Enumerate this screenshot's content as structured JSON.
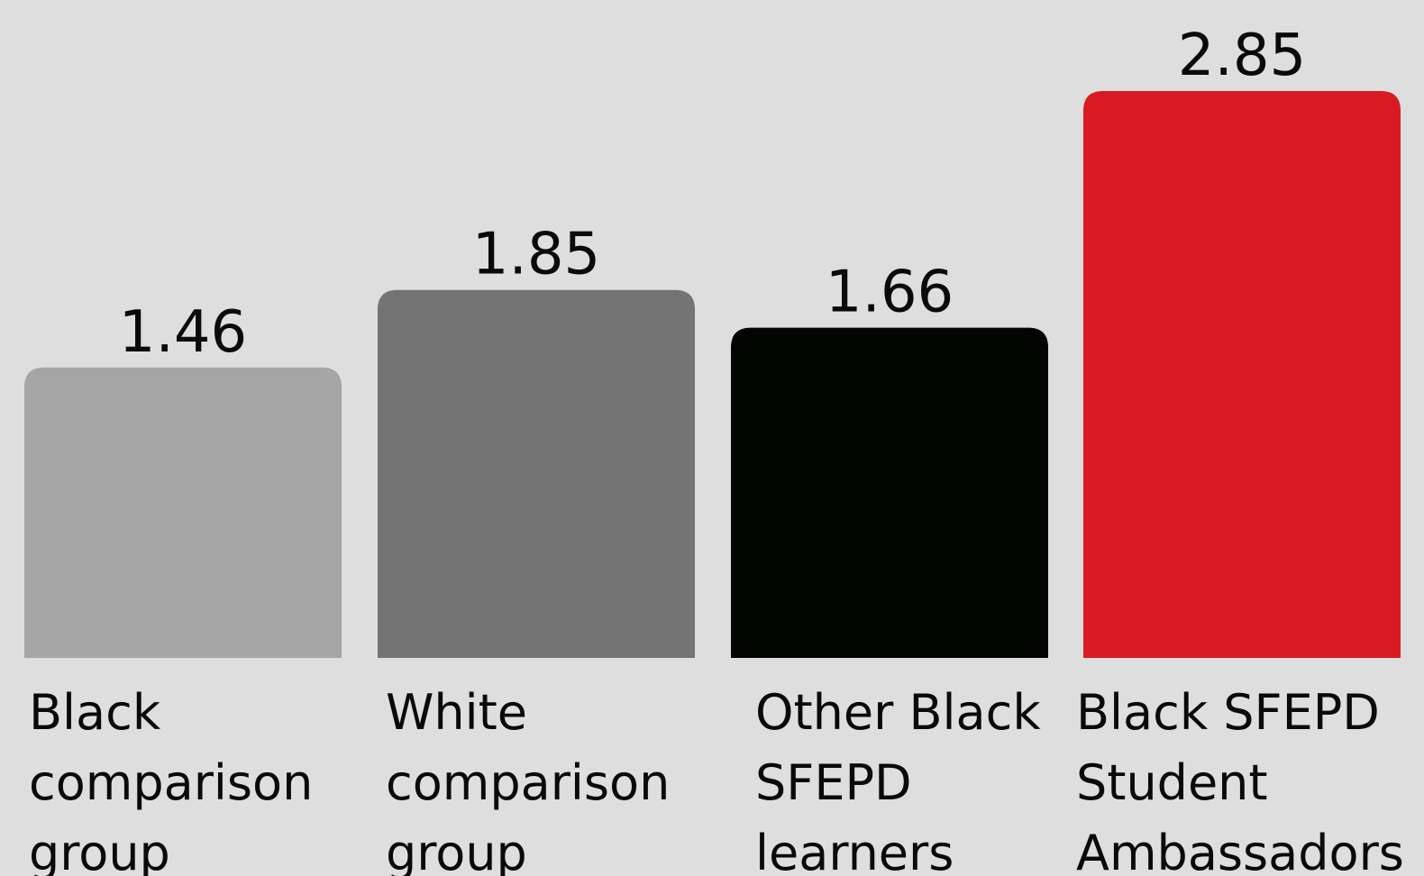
{
  "chart_data": {
    "type": "bar",
    "categories": [
      "Black comparison group",
      "White comparison group",
      "Other Black SFEPD learners",
      "Black SFEPD Student Ambassadors"
    ],
    "category_lines": [
      [
        "Black",
        "comparison",
        "group"
      ],
      [
        "White",
        "comparison",
        "group"
      ],
      [
        "Other Black",
        "SFEPD",
        "learners"
      ],
      [
        "Black SFEPD",
        "Student",
        "Ambassadors"
      ]
    ],
    "values": [
      1.46,
      1.85,
      1.66,
      2.85
    ],
    "value_labels": [
      "1.46",
      "1.85",
      "1.66",
      "2.85"
    ],
    "colors": [
      "#a5a5a5",
      "#747474",
      "#030502",
      "#d81b23"
    ],
    "title": "",
    "xlabel": "",
    "ylabel": "",
    "ylim": [
      0,
      3.3
    ],
    "grid": false,
    "legend": "none"
  }
}
